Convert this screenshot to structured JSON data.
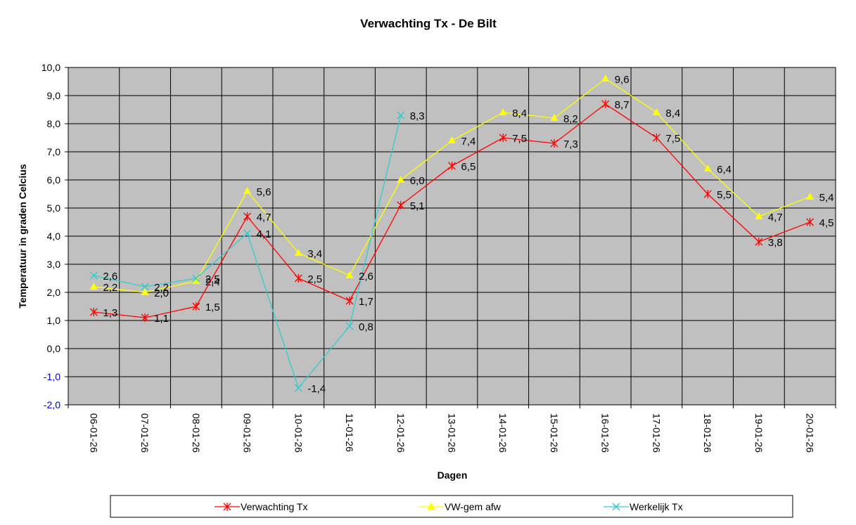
{
  "chart_data": {
    "type": "line",
    "title": "Verwachting Tx - De Bilt",
    "xlabel": "Dagen",
    "ylabel": "Temperatuur in graden Celcius",
    "ylim": [
      -2,
      10
    ],
    "ystep": 1,
    "grid": true,
    "categories": [
      "06-01-26",
      "07-01-26",
      "08-01-26",
      "09-01-26",
      "10-01-26",
      "11-01-26",
      "12-01-26",
      "13-01-26",
      "14-01-26",
      "15-01-26",
      "16-01-26",
      "17-01-26",
      "18-01-26",
      "19-01-26",
      "20-01-26"
    ],
    "series": [
      {
        "name": "Verwachting Tx",
        "color": "#ff0000",
        "marker": "star",
        "values": [
          1.3,
          1.1,
          1.5,
          4.7,
          2.5,
          1.7,
          5.1,
          6.5,
          7.5,
          7.3,
          8.7,
          7.5,
          5.5,
          3.8,
          4.5
        ],
        "labels": [
          "1,3",
          "1,1",
          "1,5",
          "4,7",
          "2,5",
          "1,7",
          "5,1",
          "6,5",
          "7,5",
          "7,3",
          "8,7",
          "7,5",
          "5,5",
          "3,8",
          "4,5"
        ]
      },
      {
        "name": "VW-gem afw",
        "color": "#ffff00",
        "marker": "triangle",
        "values": [
          2.2,
          2.0,
          2.4,
          5.6,
          3.4,
          2.6,
          6.0,
          7.4,
          8.4,
          8.2,
          9.6,
          8.4,
          6.4,
          4.7,
          5.4
        ],
        "labels": [
          "2,2",
          "2,0",
          "2,4",
          "5,6",
          "3,4",
          "2,6",
          "6,0",
          "7,4",
          "8,4",
          "8,2",
          "9,6",
          "8,4",
          "6,4",
          "4,7",
          "5,4"
        ]
      },
      {
        "name": "Werkelijk Tx",
        "color": "#33cccc",
        "marker": "x",
        "values": [
          2.6,
          2.2,
          2.5,
          4.1,
          -1.4,
          0.8,
          8.3,
          null,
          null,
          null,
          null,
          null,
          null,
          null,
          null
        ],
        "labels": [
          "2,6",
          "2,2",
          "2,5",
          "4,1",
          "-1,4",
          "0,8",
          "8,3",
          "",
          "",
          "",
          "",
          "",
          "",
          "",
          ""
        ]
      }
    ],
    "plot_background": "#c0c0c0",
    "gridline_color": "#000000",
    "negative_tick_color": "#0000cc",
    "legend_position": "bottom"
  }
}
